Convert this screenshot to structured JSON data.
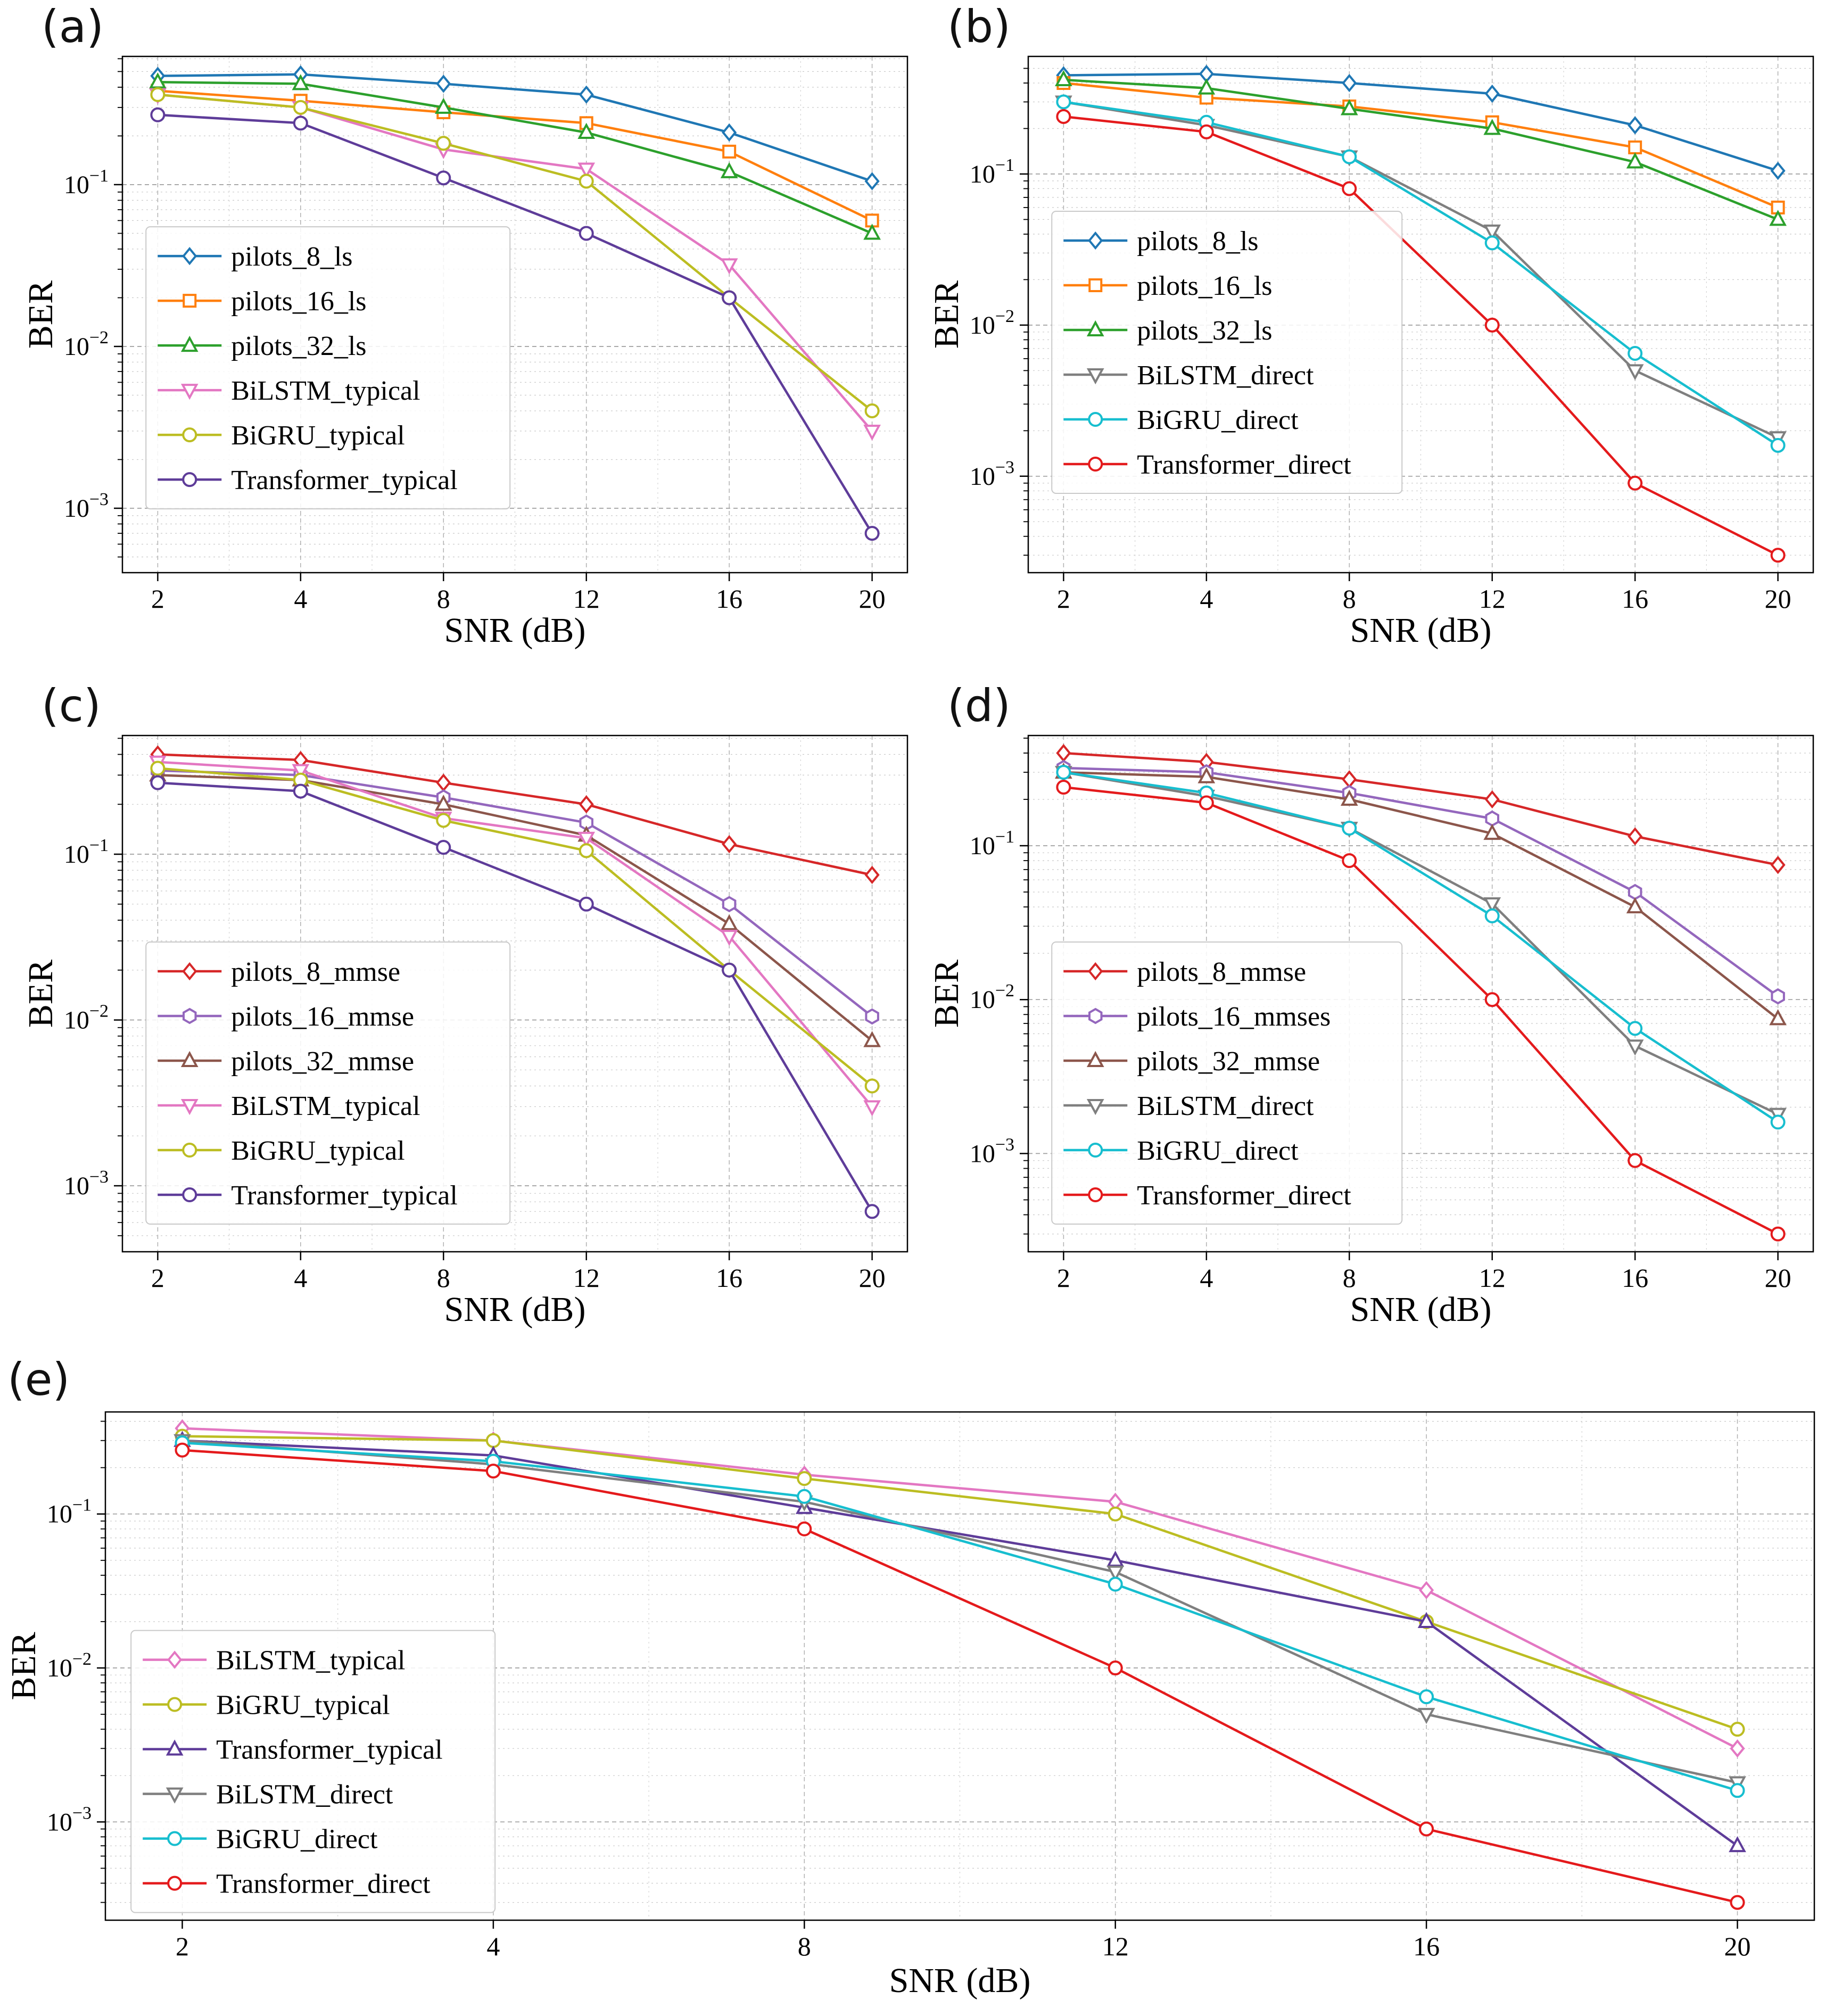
{
  "figure": {
    "background": "#ffffff"
  },
  "chart_data": [
    {
      "type": "line",
      "label": "(a)",
      "xlabel": "SNR (dB)",
      "ylabel": "BER",
      "x": [
        "2",
        "4",
        "8",
        "12",
        "16",
        "20"
      ],
      "yscale": "log",
      "ylim": [
        0.0004,
        0.62
      ],
      "grid": "both-dashed",
      "legend_position": "center-left",
      "legend_anchor": [
        0.03,
        0.33
      ],
      "series": [
        {
          "name": "pilots_8_ls",
          "color": "#1f77b4",
          "marker": "diamond",
          "values": [
            0.47,
            0.48,
            0.42,
            0.36,
            0.21,
            0.105
          ]
        },
        {
          "name": "pilots_16_ls",
          "color": "#ff7f0e",
          "marker": "square",
          "values": [
            0.38,
            0.33,
            0.28,
            0.24,
            0.16,
            0.06
          ]
        },
        {
          "name": "pilots_32_ls",
          "color": "#2ca02c",
          "marker": "triangle-up",
          "values": [
            0.43,
            0.42,
            0.3,
            0.21,
            0.12,
            0.05
          ]
        },
        {
          "name": "BiLSTM_typical",
          "color": "#e377c2",
          "marker": "triangle-down",
          "values": [
            0.36,
            0.3,
            0.165,
            0.125,
            0.032,
            0.003
          ]
        },
        {
          "name": "BiGRU_typical",
          "color": "#bcbd22",
          "marker": "circle",
          "values": [
            0.36,
            0.3,
            0.18,
            0.105,
            0.02,
            0.004
          ]
        },
        {
          "name": "Transformer_typical",
          "color": "#5e3c99",
          "marker": "circle",
          "values": [
            0.27,
            0.24,
            0.11,
            0.05,
            0.02,
            0.0007
          ]
        }
      ]
    },
    {
      "type": "line",
      "label": "(b)",
      "xlabel": "SNR (dB)",
      "ylabel": "BER",
      "x": [
        "2",
        "4",
        "8",
        "12",
        "16",
        "20"
      ],
      "yscale": "log",
      "ylim": [
        0.00023,
        0.6
      ],
      "grid": "both-dashed",
      "legend_position": "center-left",
      "legend_anchor": [
        0.03,
        0.3
      ],
      "series": [
        {
          "name": "pilots_8_ls",
          "color": "#1f77b4",
          "marker": "diamond",
          "values": [
            0.45,
            0.46,
            0.4,
            0.34,
            0.21,
            0.105
          ]
        },
        {
          "name": "pilots_16_ls",
          "color": "#ff7f0e",
          "marker": "square",
          "values": [
            0.4,
            0.32,
            0.28,
            0.22,
            0.15,
            0.06
          ]
        },
        {
          "name": "pilots_32_ls",
          "color": "#2ca02c",
          "marker": "triangle-up",
          "values": [
            0.42,
            0.37,
            0.27,
            0.2,
            0.12,
            0.05
          ]
        },
        {
          "name": "BiLSTM_direct",
          "color": "#7f7f7f",
          "marker": "triangle-down",
          "values": [
            0.3,
            0.21,
            0.13,
            0.042,
            0.005,
            0.0018
          ]
        },
        {
          "name": "BiGRU_direct",
          "color": "#17becf",
          "marker": "circle",
          "values": [
            0.3,
            0.22,
            0.13,
            0.035,
            0.0065,
            0.0016
          ]
        },
        {
          "name": "Transformer_direct",
          "color": "#e41a1c",
          "marker": "circle",
          "values": [
            0.24,
            0.19,
            0.08,
            0.01,
            0.0009,
            0.0003
          ]
        }
      ]
    },
    {
      "type": "line",
      "label": "(c)",
      "xlabel": "SNR (dB)",
      "ylabel": "BER",
      "x": [
        "2",
        "4",
        "8",
        "12",
        "16",
        "20"
      ],
      "yscale": "log",
      "ylim": [
        0.0004,
        0.52
      ],
      "grid": "both-dashed",
      "legend_position": "center-left",
      "legend_anchor": [
        0.03,
        0.4
      ],
      "series": [
        {
          "name": "pilots_8_mmse",
          "color": "#d62728",
          "marker": "diamond",
          "values": [
            0.4,
            0.37,
            0.27,
            0.2,
            0.115,
            0.075
          ]
        },
        {
          "name": "pilots_16_mmse",
          "color": "#9467bd",
          "marker": "hexagon",
          "values": [
            0.32,
            0.3,
            0.22,
            0.155,
            0.05,
            0.0105
          ]
        },
        {
          "name": "pilots_32_mmse",
          "color": "#8c564b",
          "marker": "triangle-up",
          "values": [
            0.3,
            0.28,
            0.2,
            0.13,
            0.038,
            0.0075
          ]
        },
        {
          "name": "BiLSTM_typical",
          "color": "#e377c2",
          "marker": "triangle-down",
          "values": [
            0.36,
            0.32,
            0.165,
            0.125,
            0.032,
            0.003
          ]
        },
        {
          "name": "BiGRU_typical",
          "color": "#bcbd22",
          "marker": "circle",
          "values": [
            0.33,
            0.28,
            0.16,
            0.105,
            0.02,
            0.004
          ]
        },
        {
          "name": "Transformer_typical",
          "color": "#5e3c99",
          "marker": "circle",
          "values": [
            0.27,
            0.24,
            0.11,
            0.05,
            0.02,
            0.0007
          ]
        }
      ]
    },
    {
      "type": "line",
      "label": "(d)",
      "xlabel": "SNR (dB)",
      "ylabel": "BER",
      "x": [
        "2",
        "4",
        "8",
        "12",
        "16",
        "20"
      ],
      "yscale": "log",
      "ylim": [
        0.00023,
        0.52
      ],
      "grid": "both-dashed",
      "legend_position": "center-left",
      "legend_anchor": [
        0.03,
        0.4
      ],
      "series": [
        {
          "name": "pilots_8_mmse",
          "color": "#d62728",
          "marker": "diamond",
          "values": [
            0.4,
            0.35,
            0.27,
            0.2,
            0.115,
            0.075
          ]
        },
        {
          "name": "pilots_16_mmses",
          "color": "#9467bd",
          "marker": "hexagon",
          "values": [
            0.32,
            0.3,
            0.22,
            0.15,
            0.05,
            0.0105
          ]
        },
        {
          "name": "pilots_32_mmse",
          "color": "#8c564b",
          "marker": "triangle-up",
          "values": [
            0.3,
            0.28,
            0.2,
            0.12,
            0.04,
            0.0075
          ]
        },
        {
          "name": "BiLSTM_direct",
          "color": "#7f7f7f",
          "marker": "triangle-down",
          "values": [
            0.3,
            0.21,
            0.13,
            0.042,
            0.005,
            0.0018
          ]
        },
        {
          "name": "BiGRU_direct",
          "color": "#17becf",
          "marker": "circle",
          "values": [
            0.3,
            0.22,
            0.13,
            0.035,
            0.0065,
            0.0016
          ]
        },
        {
          "name": "Transformer_direct",
          "color": "#e41a1c",
          "marker": "circle",
          "values": [
            0.24,
            0.19,
            0.08,
            0.01,
            0.0009,
            0.0003
          ]
        }
      ]
    },
    {
      "type": "line",
      "label": "(e)",
      "xlabel": "SNR (dB)",
      "ylabel": "BER",
      "x": [
        "2",
        "4",
        "8",
        "12",
        "16",
        "20"
      ],
      "yscale": "log",
      "ylim": [
        0.00023,
        0.46
      ],
      "grid": "both-dashed",
      "legend_position": "lower-left",
      "legend_anchor": [
        0.015,
        0.43
      ],
      "series": [
        {
          "name": "BiLSTM_typical",
          "color": "#e377c2",
          "marker": "diamond",
          "values": [
            0.36,
            0.3,
            0.18,
            0.12,
            0.032,
            0.003
          ]
        },
        {
          "name": "BiGRU_typical",
          "color": "#bcbd22",
          "marker": "circle",
          "values": [
            0.32,
            0.3,
            0.17,
            0.1,
            0.02,
            0.004
          ]
        },
        {
          "name": "Transformer_typical",
          "color": "#5e3c99",
          "marker": "triangle-up",
          "values": [
            0.3,
            0.24,
            0.11,
            0.05,
            0.02,
            0.0007
          ]
        },
        {
          "name": "BiLSTM_direct",
          "color": "#7f7f7f",
          "marker": "triangle-down",
          "values": [
            0.3,
            0.21,
            0.12,
            0.042,
            0.005,
            0.0018
          ]
        },
        {
          "name": "BiGRU_direct",
          "color": "#17becf",
          "marker": "circle",
          "values": [
            0.29,
            0.22,
            0.13,
            0.035,
            0.0065,
            0.0016
          ]
        },
        {
          "name": "Transformer_direct",
          "color": "#e41a1c",
          "marker": "circle",
          "values": [
            0.26,
            0.19,
            0.08,
            0.01,
            0.0009,
            0.0003
          ]
        }
      ]
    }
  ]
}
